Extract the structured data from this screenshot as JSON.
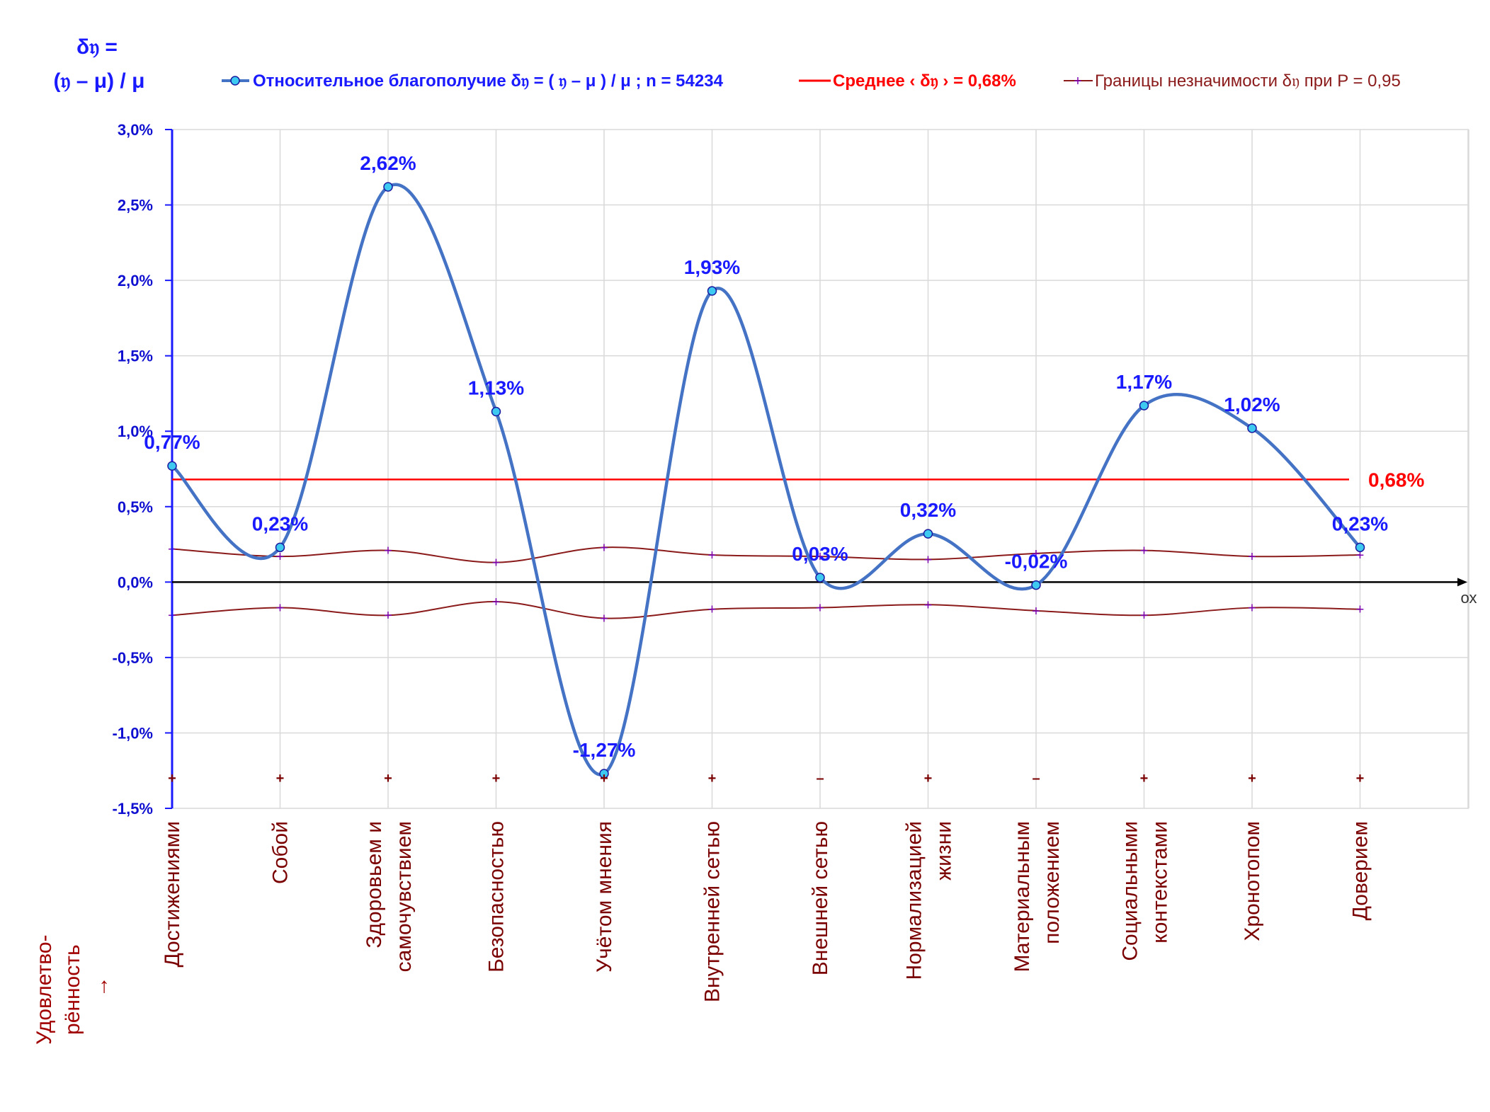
{
  "chart_data": {
    "type": "line",
    "ylabel_line1": "δ𝔶 =",
    "ylabel_line2": "(𝔶 – μ) / μ",
    "xlabel": "Удовлетво-рённость →",
    "x_axis_label": "ох",
    "ylim": [
      -1.5,
      3.0
    ],
    "yticks": [
      {
        "value": 3.0,
        "label": "3,0%"
      },
      {
        "value": 2.5,
        "label": "2,5%"
      },
      {
        "value": 2.0,
        "label": "2,0%"
      },
      {
        "value": 1.5,
        "label": "1,5%"
      },
      {
        "value": 1.0,
        "label": "1,0%"
      },
      {
        "value": 0.5,
        "label": "0,5%"
      },
      {
        "value": 0.0,
        "label": "0,0%"
      },
      {
        "value": -0.5,
        "label": "-0,5%"
      },
      {
        "value": -1.0,
        "label": "-1,0%"
      },
      {
        "value": -1.5,
        "label": "-1,5%"
      }
    ],
    "categories": [
      [
        "Достижениями"
      ],
      [
        "Собой"
      ],
      [
        "Здоровьем и",
        "самочувствием"
      ],
      [
        "Безопасностью"
      ],
      [
        "Учётом мнения"
      ],
      [
        "Внутренней сетью"
      ],
      [
        "Внешней сетью"
      ],
      [
        "Нормализацией",
        "жизни"
      ],
      [
        "Материальным",
        "положением"
      ],
      [
        "Социальными",
        "контекстами"
      ],
      [
        "Хронотопом"
      ],
      [
        "Доверием"
      ]
    ],
    "series": [
      {
        "name": "Относительное благополучие δ𝔶 = ( 𝔶 – μ ) / μ ; n = 54234",
        "color": "#4472c4",
        "values": [
          0.77,
          0.23,
          2.62,
          1.13,
          -1.27,
          1.93,
          0.03,
          0.32,
          -0.02,
          1.17,
          1.02,
          0.23
        ],
        "labels": [
          "0,77%",
          "0,23%",
          "2,62%",
          "1,13%",
          "-1,27%",
          "1,93%",
          "0,03%",
          "0,32%",
          "-0,02%",
          "1,17%",
          "1,02%",
          "0,23%"
        ]
      },
      {
        "name": "Среднее ‹ δ𝔶 › = 0,68%",
        "color": "#ff0000",
        "value": 0.68,
        "label": "0,68%"
      },
      {
        "name": "Границы незначимости δ𝔶 при P = 0,95",
        "color": "#8b1a1a",
        "upper": [
          0.22,
          0.17,
          0.21,
          0.13,
          0.23,
          0.18,
          0.17,
          0.15,
          0.19,
          0.21,
          0.17,
          0.18
        ],
        "lower": [
          -0.22,
          -0.17,
          -0.22,
          -0.13,
          -0.24,
          -0.18,
          -0.17,
          -0.15,
          -0.19,
          -0.22,
          -0.17,
          -0.18
        ]
      }
    ],
    "significance_signs": [
      "+",
      "+",
      "+",
      "+",
      "+",
      "+",
      "–",
      "+",
      "–",
      "+",
      "+",
      "+"
    ],
    "grid": true
  }
}
